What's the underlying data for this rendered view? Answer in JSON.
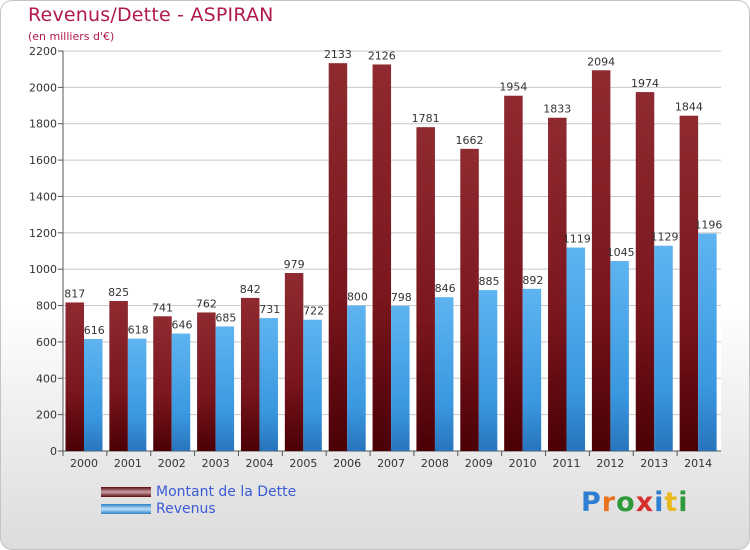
{
  "title": "Revenus/Dette - ASPIRAN",
  "subtitle": "(en milliers d'€)",
  "brand": {
    "name": "Proxiti",
    "letter_colors": [
      "#2e7fd1",
      "#e8731c",
      "#2e9a3a",
      "#d82e2e",
      "#2e7fd1",
      "#e8b81c",
      "#2e9a3a"
    ]
  },
  "legend": [
    {
      "label": "Montant de la Dette",
      "color": "#6b0a12"
    },
    {
      "label": "Revenus",
      "color": "#3a98e0"
    }
  ],
  "chart_data": {
    "type": "bar",
    "title": "Revenus/Dette - ASPIRAN",
    "subtitle": "(en milliers d'€)",
    "xlabel": "",
    "ylabel": "",
    "categories": [
      "2000",
      "2001",
      "2002",
      "2003",
      "2004",
      "2005",
      "2006",
      "2007",
      "2008",
      "2009",
      "2010",
      "2011",
      "2012",
      "2013",
      "2014"
    ],
    "series": [
      {
        "name": "Montant de la Dette",
        "color": "#8b1a22",
        "values": [
          817,
          825,
          741,
          762,
          842,
          979,
          2133,
          2126,
          1781,
          1662,
          1954,
          1833,
          2094,
          1974,
          1844
        ]
      },
      {
        "name": "Revenus",
        "color": "#3a98e0",
        "values": [
          616,
          618,
          646,
          685,
          731,
          722,
          800,
          798,
          846,
          885,
          892,
          1119,
          1045,
          1129,
          1196
        ]
      }
    ],
    "ylim": [
      0,
      2200
    ],
    "yticks": [
      0,
      200,
      400,
      600,
      800,
      1000,
      1200,
      1400,
      1600,
      1800,
      2000,
      2200
    ],
    "grid": true,
    "legend_position": "bottom-left"
  }
}
